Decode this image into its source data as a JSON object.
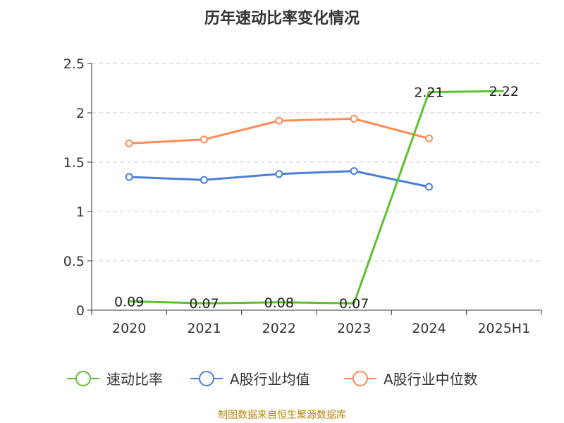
{
  "chart_data": {
    "type": "line",
    "title": "历年速动比率变化情况",
    "categories": [
      "2020",
      "2021",
      "2022",
      "2023",
      "2024",
      "2025H1"
    ],
    "ylim": [
      0,
      2.5
    ],
    "yticks": [
      "0",
      "0.5",
      "1",
      "1.5",
      "2",
      "2.5"
    ],
    "ytick_values": [
      0,
      0.5,
      1,
      1.5,
      2,
      2.5
    ],
    "grid": true,
    "legend_position": "bottom",
    "series": [
      {
        "name": "速动比率",
        "color": "#5bc22e",
        "values": [
          0.09,
          0.07,
          0.08,
          0.07,
          2.21,
          2.22
        ],
        "labels": [
          "0.09",
          "0.07",
          "0.08",
          "0.07",
          "2.21",
          "2.22"
        ],
        "markers": false
      },
      {
        "name": "A股行业均值",
        "color": "#4a7fd8",
        "values": [
          1.35,
          1.32,
          1.38,
          1.41,
          1.25,
          null
        ],
        "markers": true
      },
      {
        "name": "A股行业中位数",
        "color": "#fb8c58",
        "values": [
          1.69,
          1.73,
          1.92,
          1.94,
          1.74,
          null
        ],
        "markers": true
      }
    ]
  },
  "source_text": "制图数据来自恒生聚源数据库"
}
